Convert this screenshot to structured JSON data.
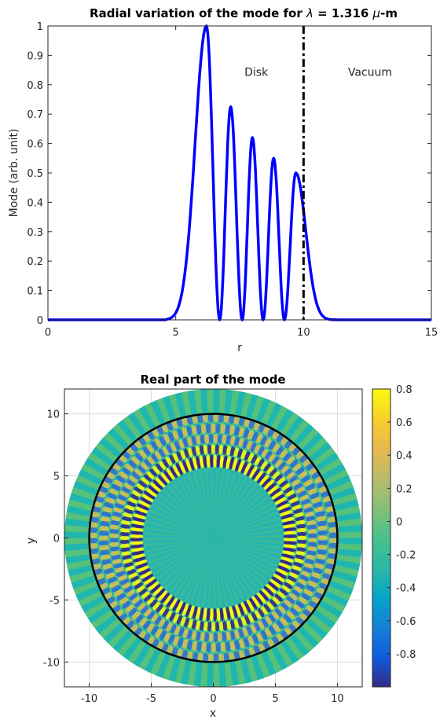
{
  "chart_data": [
    {
      "type": "line",
      "title_prefix": "Radial variation of the mode for ",
      "title_symbol": "λ",
      "title_suffix": " = 1.316 ",
      "title_unit_symbol": "μ",
      "title_unit_suffix": "-m",
      "xlabel": "r",
      "ylabel": "Mode (arb. unit)",
      "xlim": [
        0,
        15
      ],
      "ylim": [
        0,
        1
      ],
      "xticks": [
        "0",
        "5",
        "10",
        "15"
      ],
      "yticks": [
        "0",
        "0.1",
        "0.2",
        "0.3",
        "0.4",
        "0.5",
        "0.6",
        "0.7",
        "0.8",
        "0.9",
        "1"
      ],
      "grid": false,
      "color": "#0000ff",
      "boundary_r": 10,
      "region_labels": [
        {
          "text": "Disk",
          "x": 8.15,
          "y": 0.83
        },
        {
          "text": "Vacuum",
          "x": 12.6,
          "y": 0.83
        }
      ],
      "series": [
        {
          "peaks_r": [
            6.2,
            7.15,
            8.0,
            8.83,
            9.7
          ],
          "peak_values": [
            1.0,
            0.725,
            0.62,
            0.55,
            0.5
          ],
          "zeros_r": [
            6.72,
            7.6,
            8.42,
            9.25
          ],
          "rise_start_r": 4.6,
          "decay_end_r": 11.6
        }
      ]
    },
    {
      "type": "heatmap",
      "title": "Real part of the mode",
      "xlabel": "x",
      "ylabel": "y",
      "xlim": [
        -12,
        12
      ],
      "ylim": [
        -12,
        12
      ],
      "xticks": [
        "-10",
        "-5",
        "0",
        "5",
        "10"
      ],
      "yticks": [
        "10",
        "5",
        "0",
        "-5",
        "-10"
      ],
      "grid": true,
      "disk_radius": 12,
      "circle_radius": 10,
      "azimuthal_order": 72,
      "colorbar": {
        "colormap": "parula",
        "range": [
          -1,
          0.8
        ],
        "ticks": [
          "0.8",
          "0.6",
          "0.4",
          "0.2",
          "0",
          "-0.2",
          "-0.4",
          "-0.6",
          "-0.8"
        ]
      }
    }
  ]
}
